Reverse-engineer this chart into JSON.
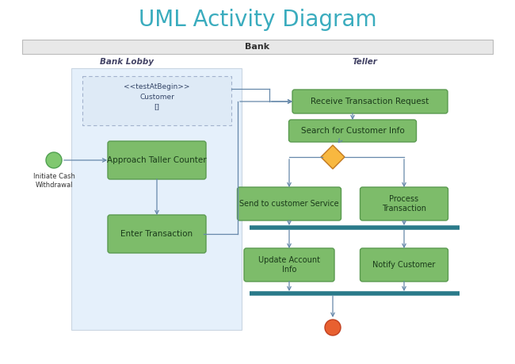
{
  "title": "UML Activity Diagram",
  "title_color": "#3AACBE",
  "title_fontsize": 20,
  "bg_color": "#ffffff",
  "bank_bar_color": "#e8e8e8",
  "bank_bar_text": "Bank",
  "swim_lane_lobby_label": "Bank Lobby",
  "swim_lane_teller_label": "Teller",
  "lobby_fill_color": "#d0e4f8",
  "lobby_fill_alpha": 0.55,
  "node_fill": "#7dbc6a",
  "node_fill2": "#88c878",
  "node_edge": "#5a9a50",
  "node_text_color": "#1a3a1a",
  "bar_color": "#2a7a8a",
  "diamond_fill": "#f8b840",
  "diamond_edge": "#c07820",
  "start_fill": "#80c870",
  "start_edge": "#50a050",
  "end_fill": "#e86030",
  "end_edge": "#c04020",
  "arrow_color": "#6688aa",
  "swim_lane_label_color": "#444466",
  "annotation_text": "<<testAtBegin>>\nCustomer\n[]",
  "dashed_color": "#8899bb"
}
